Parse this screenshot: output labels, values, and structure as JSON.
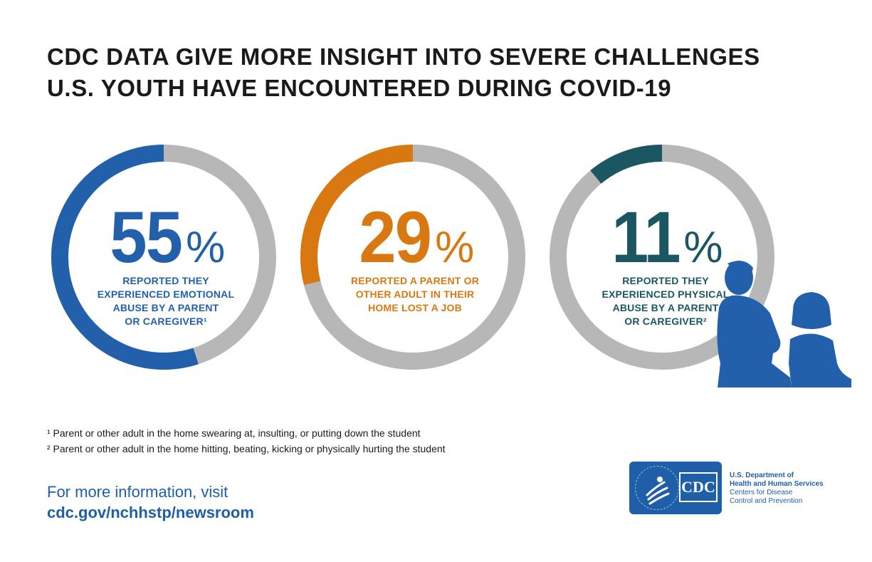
{
  "title": {
    "line1": "CDC DATA GIVE MORE INSIGHT INTO SEVERE CHALLENGES",
    "line2": "U.S. YOUTH HAVE ENCOUNTERED DURING COVID-19"
  },
  "chart_data": {
    "type": "pie",
    "title": "CDC DATA GIVE MORE INSIGHT INTO SEVERE CHALLENGES U.S. YOUTH HAVE ENCOUNTERED DURING COVID-19",
    "items": [
      {
        "value": 55,
        "value_label": "55",
        "percent_symbol": "%",
        "description": "REPORTED THEY\nEXPERIENCED EMOTIONAL\nABUSE BY A PARENT\nOR CAREGIVER¹",
        "color": "#2360ac"
      },
      {
        "value": 29,
        "value_label": "29",
        "percent_symbol": "%",
        "description": "REPORTED A PARENT OR\nOTHER ADULT IN THEIR\nHOME LOST A JOB",
        "color": "#d97811"
      },
      {
        "value": 11,
        "value_label": "11",
        "percent_symbol": "%",
        "description": "REPORTED THEY\nEXPERIENCED PHYSICAL\nABUSE BY A PARENT\nOR CAREGIVER²",
        "color": "#1a5763"
      }
    ],
    "remainder_color": "#b7b7b7"
  },
  "footnotes": {
    "note1": "¹ Parent or other adult in the home swearing at, insulting, or putting down the student",
    "note2": "² Parent or other adult in the home hitting, beating, kicking or physically hurting the student"
  },
  "more_info": {
    "text": "For more information, visit",
    "url": "cdc.gov/nchhstp/newsroom"
  },
  "logo": {
    "cdc_text": "CDC"
  },
  "agency": {
    "line1": "U.S. Department of",
    "line2": "Health and Human Services",
    "line3": "Centers for Disease",
    "line4": "Control and Prevention"
  },
  "colors": {
    "silhouette": "#2360ac",
    "link": "#1f5fa8"
  }
}
